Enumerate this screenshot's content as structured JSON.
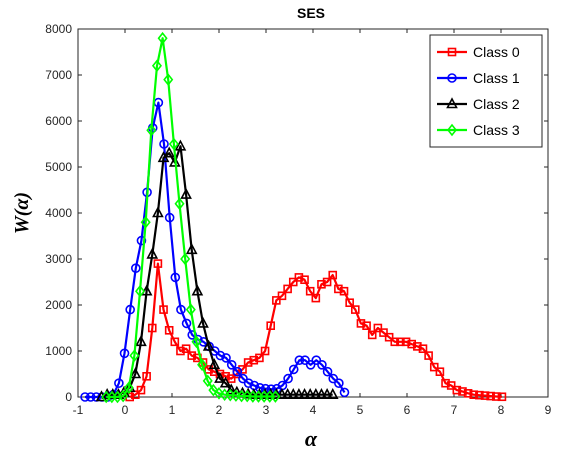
{
  "chart_data": {
    "type": "line",
    "title": "SES",
    "xlabel": "α",
    "ylabel": "W(α)",
    "xlim": [
      -1,
      9
    ],
    "ylim": [
      0,
      8000
    ],
    "xticks": [
      "-1",
      "0",
      "1",
      "2",
      "3",
      "4",
      "5",
      "6",
      "7",
      "8",
      "9"
    ],
    "yticks": [
      "0",
      "1000",
      "2000",
      "3000",
      "4000",
      "5000",
      "6000",
      "7000",
      "8000"
    ],
    "grid": false,
    "legend_position": "top-right",
    "series": [
      {
        "name": "Class 0",
        "color": "#ff0000",
        "marker": "square",
        "x": [
          0.1,
          0.22,
          0.34,
          0.46,
          0.58,
          0.7,
          0.82,
          0.94,
          1.06,
          1.18,
          1.3,
          1.42,
          1.54,
          1.66,
          1.78,
          1.9,
          2.02,
          2.14,
          2.26,
          2.38,
          2.5,
          2.62,
          2.74,
          2.86,
          2.98,
          3.1,
          3.22,
          3.34,
          3.46,
          3.58,
          3.7,
          3.82,
          3.94,
          4.06,
          4.18,
          4.3,
          4.42,
          4.54,
          4.66,
          4.78,
          4.9,
          5.02,
          5.14,
          5.26,
          5.38,
          5.5,
          5.62,
          5.74,
          5.86,
          5.98,
          6.1,
          6.22,
          6.34,
          6.46,
          6.58,
          6.7,
          6.82,
          6.94,
          7.06,
          7.18,
          7.3,
          7.42,
          7.54,
          7.66,
          7.78,
          7.9,
          8.02
        ],
        "y": [
          0,
          50,
          150,
          450,
          1500,
          2900,
          1900,
          1450,
          1200,
          1000,
          1050,
          900,
          850,
          750,
          600,
          550,
          500,
          450,
          400,
          500,
          600,
          750,
          800,
          850,
          1000,
          1550,
          2100,
          2200,
          2350,
          2500,
          2600,
          2550,
          2300,
          2150,
          2450,
          2500,
          2650,
          2350,
          2300,
          2050,
          1900,
          1600,
          1550,
          1350,
          1500,
          1400,
          1300,
          1200,
          1200,
          1200,
          1150,
          1100,
          1050,
          900,
          650,
          550,
          300,
          250,
          150,
          120,
          80,
          50,
          40,
          30,
          20,
          10,
          5
        ]
      },
      {
        "name": "Class 1",
        "color": "#0000ff",
        "marker": "circle",
        "x": [
          -0.85,
          -0.73,
          -0.61,
          -0.49,
          -0.37,
          -0.25,
          -0.13,
          -0.01,
          0.11,
          0.23,
          0.35,
          0.47,
          0.59,
          0.71,
          0.83,
          0.95,
          1.07,
          1.19,
          1.31,
          1.43,
          1.55,
          1.67,
          1.79,
          1.91,
          2.03,
          2.15,
          2.27,
          2.39,
          2.51,
          2.63,
          2.75,
          2.87,
          2.99,
          3.11,
          3.23,
          3.35,
          3.47,
          3.59,
          3.71,
          3.83,
          3.95,
          4.07,
          4.19,
          4.31,
          4.43,
          4.55,
          4.67
        ],
        "y": [
          0,
          0,
          0,
          0,
          0,
          50,
          300,
          950,
          1900,
          2800,
          3400,
          4450,
          5850,
          6400,
          5500,
          3900,
          2600,
          1900,
          1600,
          1350,
          1250,
          1200,
          1100,
          1000,
          900,
          850,
          700,
          550,
          400,
          300,
          250,
          200,
          180,
          170,
          180,
          250,
          400,
          600,
          800,
          800,
          700,
          800,
          700,
          550,
          400,
          300,
          100
        ]
      },
      {
        "name": "Class 2",
        "color": "#000000",
        "marker": "triangle",
        "x": [
          -0.5,
          -0.38,
          -0.26,
          -0.14,
          -0.02,
          0.1,
          0.22,
          0.34,
          0.46,
          0.58,
          0.7,
          0.82,
          0.94,
          1.06,
          1.18,
          1.3,
          1.42,
          1.54,
          1.66,
          1.78,
          1.9,
          2.02,
          2.14,
          2.26,
          2.38,
          2.5,
          2.62,
          2.74,
          2.86,
          2.98,
          3.1,
          3.22,
          3.34,
          3.46,
          3.58,
          3.7,
          3.82,
          3.94,
          4.06,
          4.18,
          4.3,
          4.42
        ],
        "y": [
          0,
          50,
          50,
          50,
          100,
          200,
          500,
          1200,
          2300,
          3100,
          4000,
          5200,
          5300,
          5100,
          5450,
          4400,
          3200,
          2300,
          1600,
          1100,
          700,
          400,
          300,
          150,
          100,
          80,
          60,
          50,
          50,
          50,
          50,
          50,
          50,
          50,
          50,
          50,
          50,
          50,
          50,
          50,
          50,
          50
        ]
      },
      {
        "name": "Class 3",
        "color": "#00ff00",
        "marker": "diamond",
        "x": [
          -0.4,
          -0.28,
          -0.16,
          -0.04,
          0.08,
          0.2,
          0.32,
          0.44,
          0.56,
          0.68,
          0.8,
          0.92,
          1.04,
          1.16,
          1.28,
          1.4,
          1.52,
          1.64,
          1.76,
          1.88,
          2.0,
          2.12,
          2.24,
          2.36,
          2.48,
          2.6,
          2.72,
          2.84,
          2.96,
          3.08,
          3.2
        ],
        "y": [
          0,
          0,
          0,
          20,
          200,
          900,
          2300,
          3800,
          5800,
          7200,
          7800,
          6900,
          5500,
          4200,
          3000,
          1900,
          1200,
          700,
          350,
          150,
          80,
          50,
          40,
          30,
          20,
          20,
          10,
          10,
          10,
          10,
          10
        ]
      }
    ]
  }
}
